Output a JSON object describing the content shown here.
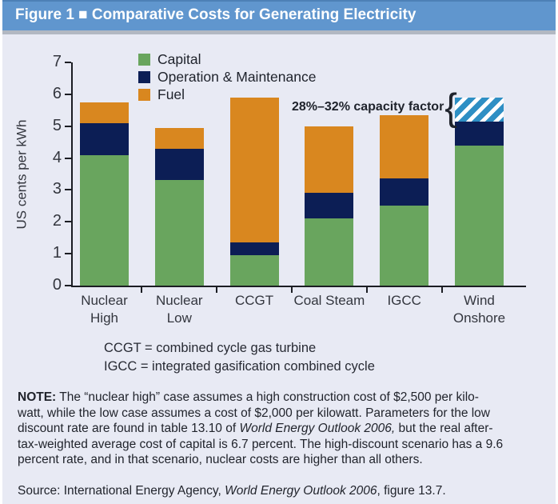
{
  "figure_title": "Figure 1 ■ Comparative Costs for Generating Electricity",
  "colors": {
    "header_bg": "#6096ce",
    "body_bg": "#e8eaf4",
    "capital_green": "#69a55e",
    "om_navy": "#0c1e55",
    "fuel_orange": "#d9871f",
    "hatch_blue": "#2e8fc4",
    "axis_dark": "#1b1d23"
  },
  "chart_data": {
    "type": "bar",
    "stacked": true,
    "ylabel": "US cents per kWh",
    "ylim": [
      0,
      7
    ],
    "yticks": [
      0,
      1,
      2,
      3,
      4,
      5,
      6,
      7
    ],
    "grid": false,
    "legend_position": "top-left inside plot",
    "categories": [
      "Nuclear High",
      "Nuclear Low",
      "CCGT",
      "Coal Steam",
      "IGCC",
      "Wind Onshore"
    ],
    "series": [
      {
        "name": "Capital",
        "color": "#69a55e",
        "values": [
          4.1,
          3.3,
          0.95,
          2.1,
          2.5,
          4.4
        ]
      },
      {
        "name": "Operation & Maintenance",
        "color": "#0c1e55",
        "values": [
          1.0,
          1.0,
          0.4,
          0.8,
          0.85,
          0.75
        ]
      },
      {
        "name": "Fuel",
        "color": "#d9871f",
        "values": [
          0.65,
          0.65,
          4.55,
          2.1,
          2.0,
          0
        ]
      },
      {
        "name": "28%–32% capacity factor range",
        "color": "hatch",
        "values": [
          0,
          0,
          0,
          0,
          0,
          0.75
        ]
      }
    ],
    "totals": [
      5.75,
      4.95,
      5.9,
      5.0,
      5.35,
      5.9
    ],
    "annotation": {
      "text": "28%–32% capacity factor",
      "brace": "{"
    }
  },
  "acronyms": {
    "line1": "CCGT = combined cycle gas turbine",
    "line2": "IGCC = integrated gasification combined cycle"
  },
  "note": {
    "line1_bold": "NOTE:",
    "line1_rest": " The “nuclear high” case assumes a high construction cost of $2,500 per kilo-",
    "line2": "watt, while the low case assumes a cost of $2,000 per kilowatt. Parameters for the low",
    "line3_pre": "discount rate are found in table 13.10 of ",
    "line3_italic": "World Energy Outlook 2006,",
    "line3_post": " but the real after-",
    "line4": "tax-weighted average cost of capital is 6.7 percent. The high-discount scenario has a 9.6",
    "line5": "percent rate, and in that scenario, nuclear costs are higher than all others."
  },
  "source": {
    "pre": "Source: International Energy Agency, ",
    "italic": "World Energy Outlook 2006",
    "post": ", figure 13.7."
  }
}
